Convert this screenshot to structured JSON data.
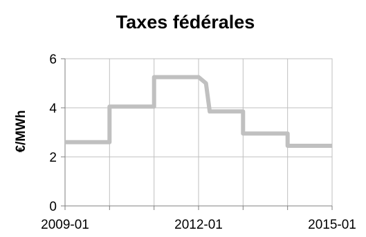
{
  "chart_data": {
    "type": "line",
    "title": "Taxes fédérales",
    "xlabel": "",
    "ylabel": "€/MWh",
    "x_tick_labels": [
      "2009-01",
      "2012-01",
      "2015-01"
    ],
    "y_tick_labels": [
      "0",
      "2",
      "4",
      "6"
    ],
    "ylim": [
      0,
      6
    ],
    "xlim": [
      "2009-01",
      "2015-01"
    ],
    "grid": true,
    "line_color": "#c0c0c0",
    "series": [
      {
        "x": [
          "2009-01",
          "2010-01",
          "2010-01",
          "2011-01",
          "2011-01",
          "2012-01",
          "2012-01",
          "2012-03",
          "2012-03",
          "2012-04",
          "2012-04",
          "2013-01",
          "2013-01",
          "2014-01",
          "2014-01",
          "2015-01"
        ],
        "values": [
          2.6,
          2.6,
          4.05,
          4.05,
          5.25,
          5.25,
          5.25,
          5.0,
          5.0,
          3.85,
          3.85,
          3.85,
          2.95,
          2.95,
          2.45,
          2.45
        ]
      }
    ]
  }
}
